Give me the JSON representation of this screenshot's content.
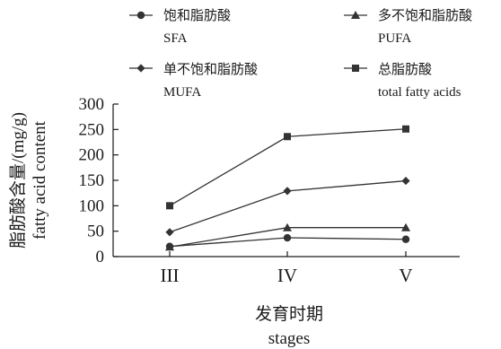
{
  "chart_data": {
    "type": "line",
    "categories": [
      "III",
      "IV",
      "V"
    ],
    "series": [
      {
        "name_cn": "饱和脂肪酸",
        "name_en": "SFA",
        "marker": "circle",
        "values": [
          20,
          37,
          34
        ]
      },
      {
        "name_cn": "多不饱和脂肪酸",
        "name_en": "PUFA",
        "marker": "triangle",
        "values": [
          19,
          57,
          57
        ]
      },
      {
        "name_cn": "单不饱和脂肪酸",
        "name_en": "MUFA",
        "marker": "diamond",
        "values": [
          48,
          129,
          149
        ]
      },
      {
        "name_cn": "总脂肪酸",
        "name_en": "total fatty acids",
        "marker": "square",
        "values": [
          100,
          236,
          251
        ]
      }
    ],
    "xlabel_cn": "发育时期",
    "xlabel_en": "stages",
    "ylabel_cn": "脂肪酸含量/(mg/g)",
    "ylabel_en": "fatty acid content",
    "ylim": [
      0,
      300
    ],
    "yticks": [
      "0",
      "50",
      "100",
      "150",
      "200",
      "250",
      "300"
    ],
    "grid": false,
    "legend_position": "top",
    "line_color": "#333333"
  }
}
